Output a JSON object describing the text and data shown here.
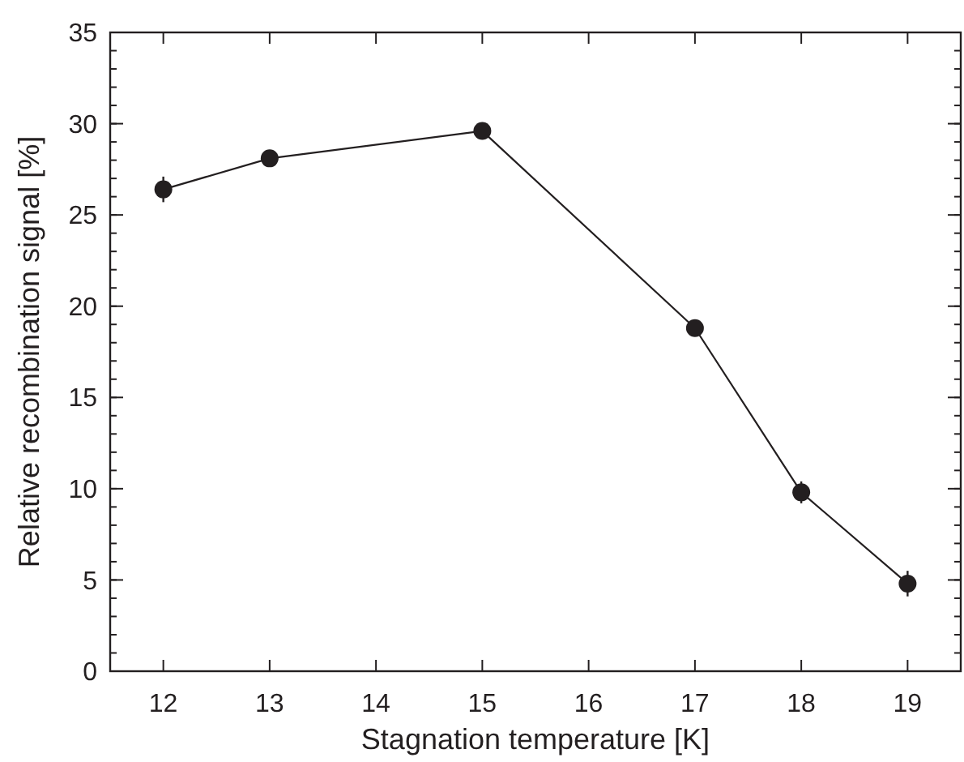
{
  "chart_data": {
    "type": "line",
    "xlabel": "Stagnation temperature [K]",
    "ylabel": "Relative recombination signal [%]",
    "x": [
      12,
      13,
      15,
      17,
      18,
      19
    ],
    "series": [
      {
        "color": "#231f20",
        "values": [
          26.4,
          28.1,
          29.6,
          18.8,
          9.8,
          4.8
        ],
        "errors": [
          0.7,
          0.3,
          0.4,
          0.3,
          0.6,
          0.7
        ]
      }
    ],
    "xlim": [
      11.5,
      19.5
    ],
    "xticks": [
      12,
      13,
      14,
      15,
      16,
      17,
      18,
      19
    ],
    "ylim": [
      0,
      35
    ],
    "yticks": [
      0,
      5,
      10,
      15,
      20,
      25,
      30,
      35
    ],
    "marker": "circle",
    "line_style": "solid"
  }
}
